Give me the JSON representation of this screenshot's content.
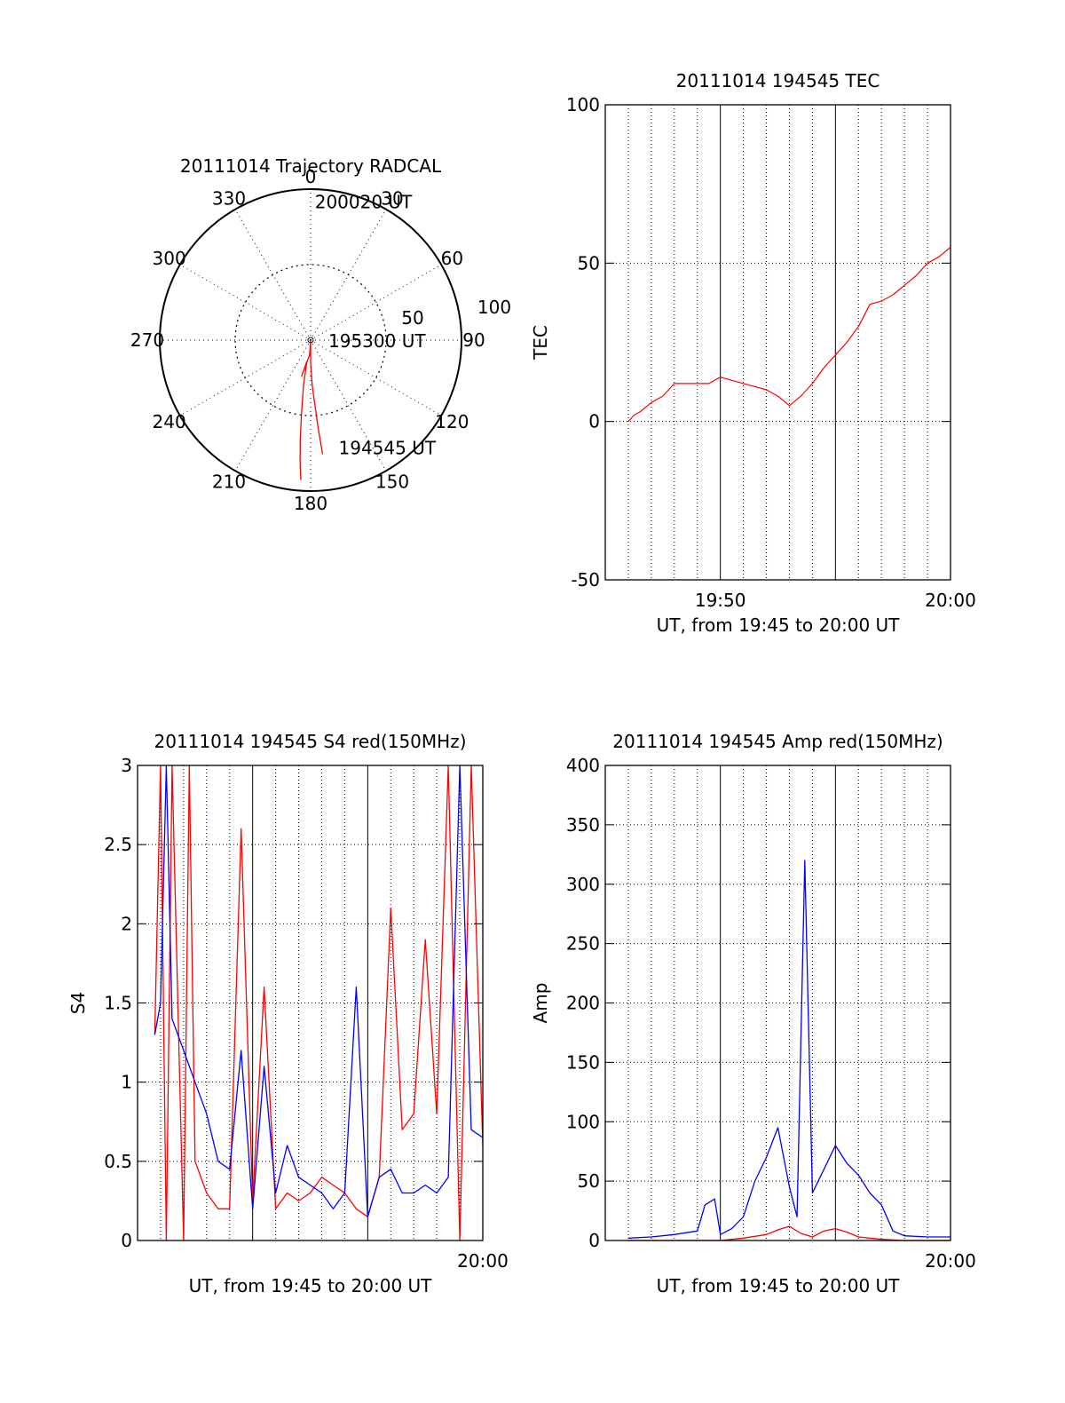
{
  "chart_data": [
    {
      "type": "polar",
      "title": "20111014 Trajectory RADCAL",
      "angle_labels": [
        "0",
        "30",
        "60",
        "90",
        "120",
        "150",
        "180",
        "210",
        "240",
        "270",
        "300",
        "330"
      ],
      "radius_labels": [
        "50",
        "100"
      ],
      "rlim": [
        0,
        100
      ],
      "series": [
        {
          "color": "#ff0000",
          "points": [
            [
              174,
              76
            ],
            [
              175,
              60
            ],
            [
              176,
              45
            ],
            [
              178,
              30
            ],
            [
              180,
              15
            ],
            [
              180,
              0
            ],
            [
              184,
              10
            ],
            [
              194,
              25
            ],
            [
              190,
              14
            ],
            [
              189,
              30
            ],
            [
              187,
              50
            ],
            [
              186,
              65
            ],
            [
              185,
              80
            ],
            [
              184,
              93
            ]
          ]
        }
      ],
      "annotations": [
        {
          "text": "200020 UT",
          "theta": 1,
          "r": 92
        },
        {
          "text": "195300 UT",
          "theta": 180,
          "r": 0
        },
        {
          "text": "194545 UT",
          "theta": 174,
          "r": 76
        }
      ]
    },
    {
      "type": "line",
      "title": "20111014 194545 TEC",
      "xlabel": "UT, from 19:45 to 20:00 UT",
      "ylabel": "TEC",
      "xlim": [
        "19:45",
        "20:00"
      ],
      "ylim": [
        -50,
        100
      ],
      "xticks": [
        "19:50",
        "20:00"
      ],
      "yticks": [
        "-50",
        "0",
        "50",
        "100"
      ],
      "grid": true,
      "series": [
        {
          "color": "#ff0000",
          "x": [
            "19:46",
            "19:46:15",
            "19:46:30",
            "19:47",
            "19:47:30",
            "19:48",
            "19:48:30",
            "19:49",
            "19:49:30",
            "19:50",
            "19:50:30",
            "19:51",
            "19:51:30",
            "19:52",
            "19:52:30",
            "19:53",
            "19:53:30",
            "19:54",
            "19:54:30",
            "19:55",
            "19:55:30",
            "19:56",
            "19:56:30",
            "19:57",
            "19:57:30",
            "19:58",
            "19:58:30",
            "19:59",
            "19:59:30",
            "20:00"
          ],
          "y": [
            0,
            2,
            3,
            6,
            8,
            12,
            12,
            12,
            12,
            14,
            13,
            12,
            11,
            10,
            8,
            5,
            8,
            12,
            17,
            21,
            25,
            30,
            37,
            38,
            40,
            43,
            46,
            50,
            52,
            55
          ]
        }
      ]
    },
    {
      "type": "line",
      "title": "20111014 194545 S4 red(150MHz)",
      "xlabel": "UT, from 19:45 to 20:00 UT",
      "ylabel": "S4",
      "xlim": [
        "19:45",
        "20:00"
      ],
      "ylim": [
        0,
        3
      ],
      "xticks": [
        "20:00"
      ],
      "yticks": [
        "0",
        "0.5",
        "1",
        "1.5",
        "2",
        "2.5",
        "3"
      ],
      "grid": true,
      "series": [
        {
          "color": "#ff0000",
          "x": [
            "19:45:45",
            "19:46",
            "19:46:15",
            "19:46:30",
            "19:47",
            "19:47:15",
            "19:47:30",
            "19:48",
            "19:48:30",
            "19:49",
            "19:49:30",
            "19:50",
            "19:50:30",
            "19:51",
            "19:51:30",
            "19:52",
            "19:52:30",
            "19:53",
            "19:53:30",
            "19:54",
            "19:54:30",
            "19:55",
            "19:55:30",
            "19:56",
            "19:56:30",
            "19:57",
            "19:57:30",
            "19:58",
            "19:58:30",
            "19:59",
            "19:59:30",
            "20:00"
          ],
          "y": [
            1.3,
            3.0,
            0.0,
            3.0,
            0.0,
            3.0,
            0.5,
            0.3,
            0.2,
            0.2,
            2.6,
            0.25,
            1.6,
            0.2,
            0.3,
            0.25,
            0.3,
            0.4,
            0.35,
            0.3,
            0.2,
            0.15,
            0.4,
            2.1,
            0.7,
            0.8,
            1.9,
            0.8,
            3.0,
            0.0,
            3.0,
            0.6
          ]
        },
        {
          "color": "#0000ff",
          "x": [
            "19:45:45",
            "19:46",
            "19:46:15",
            "19:46:30",
            "19:47",
            "19:47:30",
            "19:48",
            "19:48:30",
            "19:49",
            "19:49:30",
            "19:50",
            "19:50:30",
            "19:51",
            "19:51:30",
            "19:52",
            "19:52:30",
            "19:53",
            "19:53:30",
            "19:54",
            "19:54:30",
            "19:55",
            "19:55:30",
            "19:56",
            "19:56:30",
            "19:57",
            "19:57:30",
            "19:58",
            "19:58:30",
            "19:59",
            "19:59:30",
            "20:00"
          ],
          "y": [
            1.3,
            1.5,
            3.0,
            1.4,
            1.2,
            1.0,
            0.8,
            0.5,
            0.45,
            1.2,
            0.2,
            1.1,
            0.3,
            0.6,
            0.4,
            0.35,
            0.3,
            0.2,
            0.3,
            1.6,
            0.15,
            0.4,
            0.45,
            0.3,
            0.3,
            0.35,
            0.3,
            0.4,
            3.0,
            0.7,
            0.65
          ]
        }
      ]
    },
    {
      "type": "line",
      "title": "20111014 194545 Amp red(150MHz)",
      "xlabel": "UT, from 19:45 to 20:00 UT",
      "ylabel": "Amp",
      "xlim": [
        "19:45",
        "20:00"
      ],
      "ylim": [
        0,
        400
      ],
      "xticks": [
        "20:00"
      ],
      "yticks": [
        "0",
        "50",
        "100",
        "150",
        "200",
        "250",
        "300",
        "350",
        "400"
      ],
      "grid": true,
      "series": [
        {
          "color": "#ff0000",
          "x": [
            "19:46",
            "19:48",
            "19:50",
            "19:51",
            "19:52",
            "19:52:30",
            "19:53",
            "19:53:30",
            "19:54",
            "19:54:30",
            "19:55",
            "19:55:30",
            "19:56",
            "19:57",
            "19:58",
            "19:59",
            "20:00"
          ],
          "y": [
            0,
            0,
            0,
            2,
            5,
            9,
            12,
            6,
            3,
            8,
            10,
            7,
            3,
            1,
            0,
            0,
            0
          ]
        },
        {
          "color": "#0000ff",
          "x": [
            "19:46",
            "19:47",
            "19:48",
            "19:49",
            "19:49:20",
            "19:49:45",
            "19:50",
            "19:50:30",
            "19:51",
            "19:51:30",
            "19:52",
            "19:52:30",
            "19:53",
            "19:53:20",
            "19:53:40",
            "19:54",
            "19:54:30",
            "19:55",
            "19:55:30",
            "19:56",
            "19:56:30",
            "19:57",
            "19:57:30",
            "19:58",
            "19:59",
            "20:00"
          ],
          "y": [
            2,
            3,
            5,
            8,
            30,
            35,
            5,
            10,
            20,
            50,
            70,
            95,
            45,
            20,
            320,
            40,
            60,
            80,
            65,
            55,
            40,
            30,
            8,
            4,
            3,
            3
          ]
        }
      ]
    }
  ]
}
